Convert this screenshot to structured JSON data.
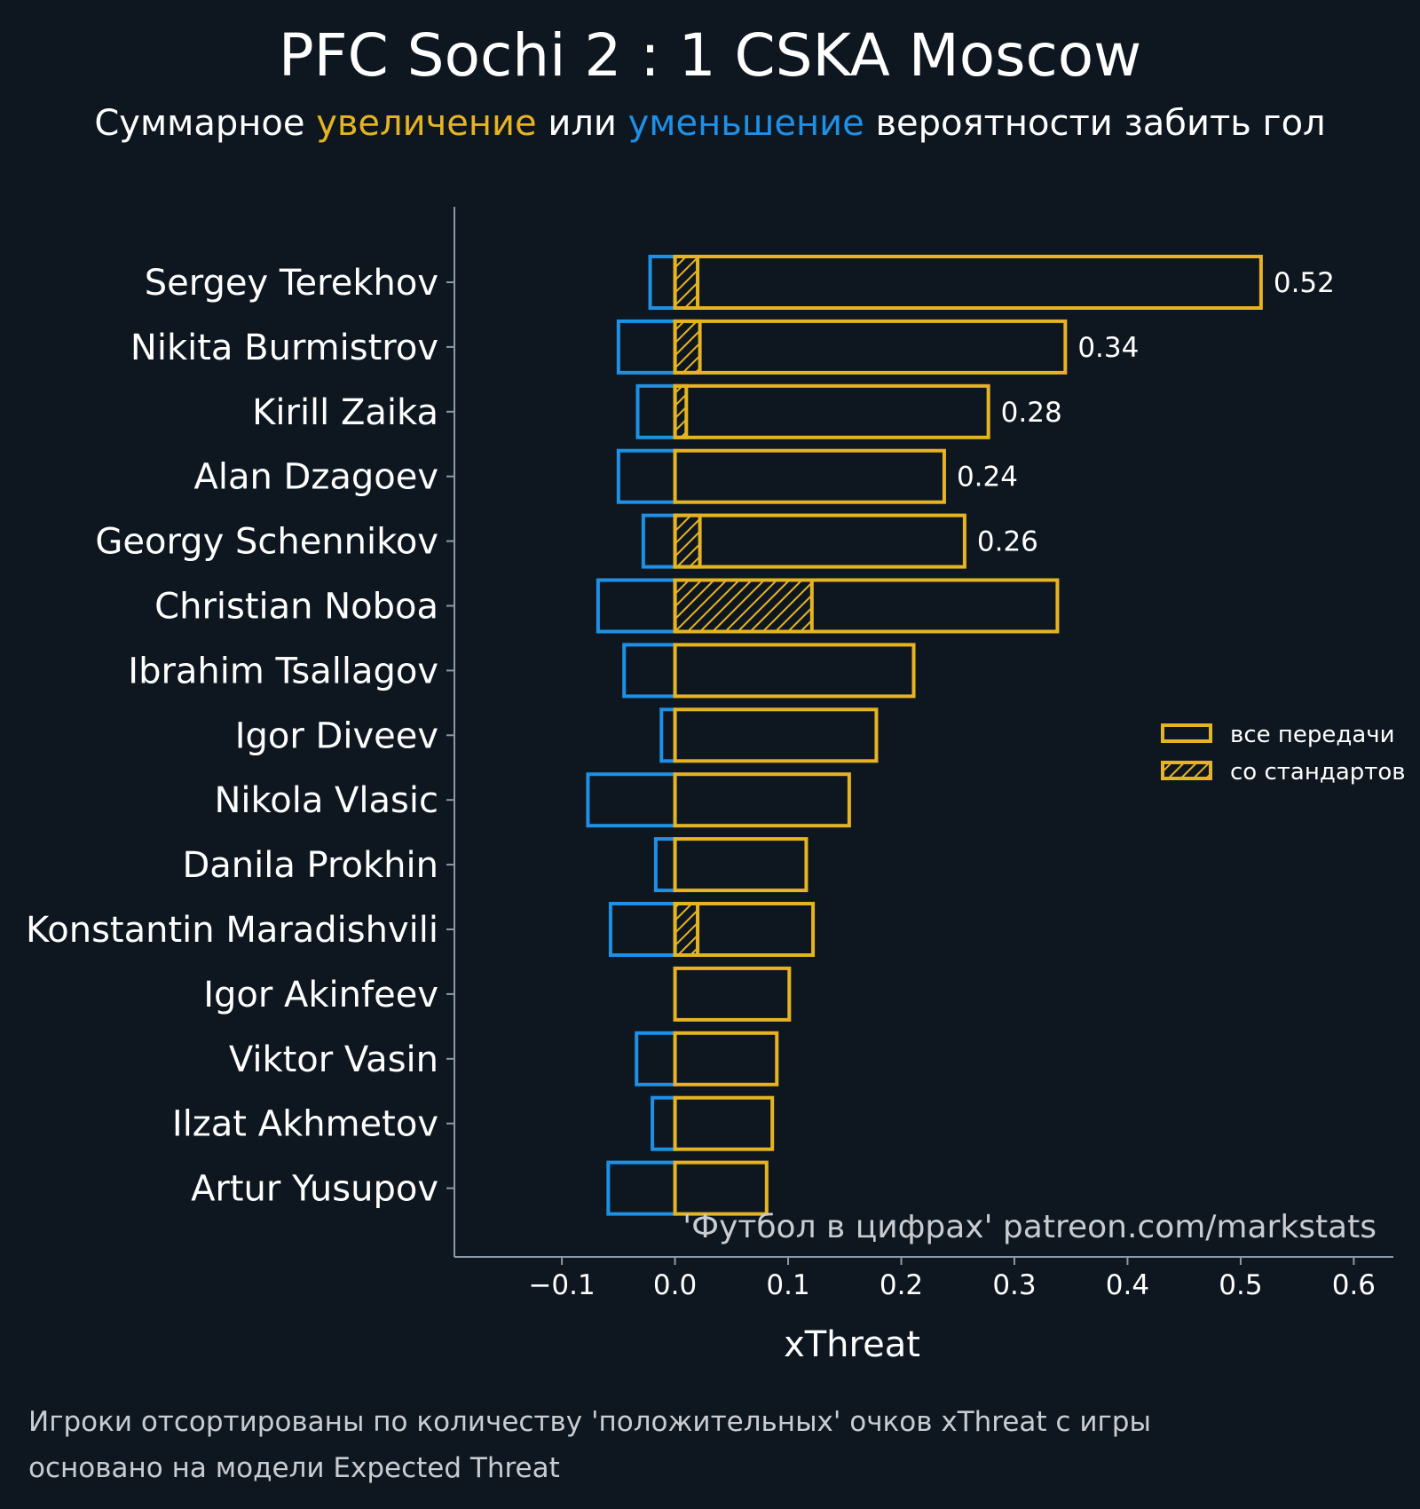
{
  "colors": {
    "background": "#0e1720",
    "positive": "#e6b422",
    "negative": "#1e90e6",
    "text": "#ffffff",
    "muted": "#c9ccd0",
    "axis": "#8a9aa8"
  },
  "header": {
    "title": "PFC Sochi 2 : 1 CSKA Moscow",
    "subtitle_part1": "Суммарное ",
    "subtitle_increase": "увеличение",
    "subtitle_part2": " или ",
    "subtitle_decrease": "уменьшение",
    "subtitle_part3": " вероятности забить гол"
  },
  "legend": {
    "all_passes": "все передачи",
    "set_pieces": "со стандартов"
  },
  "watermark": "'Футбол в цифрах' patreon.com/markstats",
  "footnote": {
    "line1": "Игроки отсортированы по количеству 'положительных' очков xThreat с игры",
    "line2": "основано на модели Expected Threat"
  },
  "chart_data": {
    "type": "bar",
    "orientation": "horizontal",
    "xlabel": "xThreat",
    "xlim": [
      -0.195,
      0.635
    ],
    "xticks": [
      -0.1,
      0.0,
      0.1,
      0.2,
      0.3,
      0.4,
      0.5,
      0.6
    ],
    "xtick_labels": [
      "−0.1",
      "0.0",
      "0.1",
      "0.2",
      "0.3",
      "0.4",
      "0.5",
      "0.6"
    ],
    "grid": false,
    "legend_position": "right",
    "categories": [
      "Sergey Terekhov",
      "Nikita Burmistrov",
      "Kirill Zaika",
      "Alan Dzagoev",
      "Georgy Schennikov",
      "Christian Noboa",
      "Ibrahim Tsallagov",
      "Igor Diveev",
      "Nikola Vlasic",
      "Danila Prokhin",
      "Konstantin Maradishvili",
      "Igor Akinfeev",
      "Viktor Vasin",
      "Ilzat Akhmetov",
      "Artur Yusupov"
    ],
    "series": [
      {
        "name": "все передачи",
        "values": [
          0.518,
          0.345,
          0.277,
          0.238,
          0.256,
          0.338,
          0.211,
          0.178,
          0.154,
          0.116,
          0.122,
          0.101,
          0.09,
          0.086,
          0.081
        ]
      },
      {
        "name": "со стандартов",
        "values": [
          0.02,
          0.022,
          0.01,
          0.0,
          0.022,
          0.121,
          0.0,
          0.0,
          0.0,
          0.0,
          0.02,
          0.0,
          0.0,
          0.0,
          0.0
        ]
      },
      {
        "values": [
          -0.022,
          -0.05,
          -0.033,
          -0.05,
          -0.028,
          -0.068,
          -0.045,
          -0.012,
          -0.077,
          -0.017,
          -0.057,
          0.0,
          -0.034,
          -0.02,
          -0.059
        ]
      }
    ],
    "value_labels": [
      "0.52",
      "0.34",
      "0.28",
      "0.24",
      "0.26",
      "",
      "",
      "",
      "",
      "",
      "",
      "",
      "",
      "",
      ""
    ]
  }
}
